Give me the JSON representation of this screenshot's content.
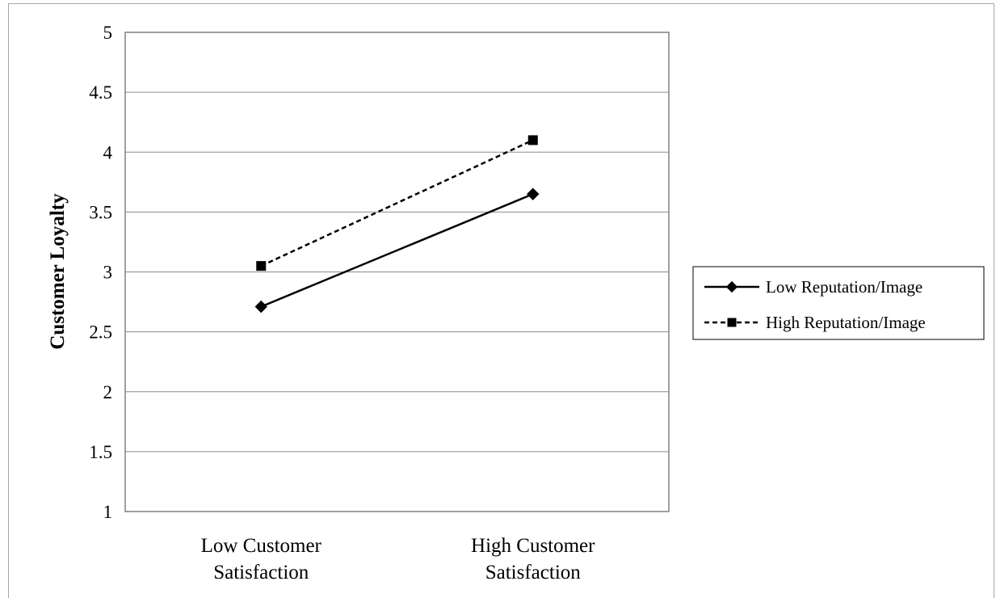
{
  "chart_data": {
    "type": "line",
    "title": "",
    "xlabel": "",
    "ylabel": "Customer Loyalty",
    "ylim": [
      1,
      5
    ],
    "yticks": [
      "1",
      "1.5",
      "2",
      "2.5",
      "3",
      "3.5",
      "4",
      "4.5",
      "5"
    ],
    "categories": [
      [
        "Low Customer",
        "Satisfaction"
      ],
      [
        "High Customer",
        "Satisfaction"
      ]
    ],
    "grid": true,
    "legend_position": "right",
    "series": [
      {
        "name": "Low Reputation/Image",
        "values": [
          2.71,
          3.65
        ],
        "marker": "diamond",
        "line_style": "solid",
        "color": "#000000"
      },
      {
        "name": "High Reputation/Image",
        "values": [
          3.05,
          4.1
        ],
        "marker": "square",
        "line_style": "dashed",
        "color": "#000000"
      }
    ]
  }
}
